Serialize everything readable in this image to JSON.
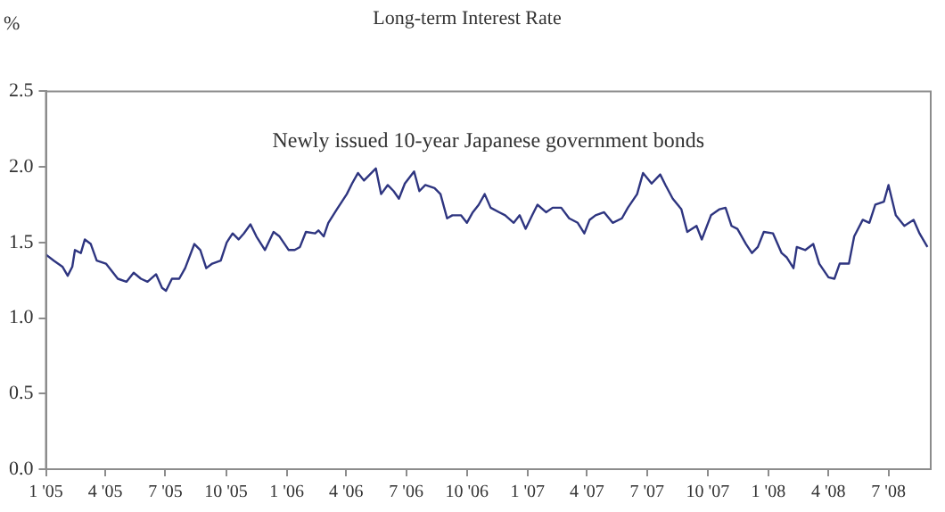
{
  "chart_data": {
    "type": "line",
    "title": "Long-term Interest Rate",
    "ylabel": "%",
    "annotations": [
      "Newly issued 10-year Japanese government bonds"
    ],
    "series": [
      {
        "color": "#2e3580",
        "x": [
          "2005-01-01",
          "2005-01-13",
          "2005-01-26",
          "2005-02-03",
          "2005-02-10",
          "2005-02-14",
          "2005-02-23",
          "2005-03-01",
          "2005-03-10",
          "2005-03-19",
          "2005-04-02",
          "2005-04-11",
          "2005-04-20",
          "2005-05-03",
          "2005-05-14",
          "2005-05-25",
          "2005-06-04",
          "2005-06-17",
          "2005-06-26",
          "2005-07-02",
          "2005-07-11",
          "2005-07-22",
          "2005-07-31",
          "2005-08-14",
          "2005-08-23",
          "2005-09-01",
          "2005-09-10",
          "2005-09-23",
          "2005-10-02",
          "2005-10-11",
          "2005-10-20",
          "2005-10-28",
          "2005-11-07",
          "2005-11-16",
          "2005-11-29",
          "2005-12-12",
          "2005-12-21",
          "2006-01-04",
          "2006-01-13",
          "2006-01-21",
          "2006-01-30",
          "2006-02-13",
          "2006-02-18",
          "2006-02-26",
          "2006-03-05",
          "2006-03-18",
          "2006-04-02",
          "2006-04-10",
          "2006-04-19",
          "2006-04-28",
          "2006-05-07",
          "2006-05-16",
          "2006-05-24",
          "2006-06-03",
          "2006-06-12",
          "2006-06-20",
          "2006-06-29",
          "2006-07-13",
          "2006-07-21",
          "2006-07-30",
          "2006-08-13",
          "2006-08-22",
          "2006-09-01",
          "2006-09-09",
          "2006-09-22",
          "2006-10-01",
          "2006-10-10",
          "2006-10-19",
          "2006-10-28",
          "2006-11-06",
          "2006-11-19",
          "2006-11-28",
          "2006-12-11",
          "2006-12-20",
          "2006-12-29",
          "2007-01-08",
          "2007-01-16",
          "2007-01-29",
          "2007-02-08",
          "2007-02-21",
          "2007-03-05",
          "2007-03-18",
          "2007-03-28",
          "2007-04-05",
          "2007-04-14",
          "2007-04-27",
          "2007-05-10",
          "2007-05-24",
          "2007-06-02",
          "2007-06-16",
          "2007-06-25",
          "2007-07-08",
          "2007-07-21",
          "2007-07-29",
          "2007-08-09",
          "2007-08-22",
          "2007-08-31",
          "2007-09-14",
          "2007-09-22",
          "2007-10-06",
          "2007-10-19",
          "2007-10-28",
          "2007-11-06",
          "2007-11-15",
          "2007-11-28",
          "2007-12-07",
          "2007-12-16",
          "2007-12-25",
          "2008-01-08",
          "2008-01-21",
          "2008-01-29",
          "2008-02-08",
          "2008-02-13",
          "2008-02-26",
          "2008-03-09",
          "2008-03-18",
          "2008-04-01",
          "2008-04-10",
          "2008-04-18",
          "2008-05-02",
          "2008-05-10",
          "2008-05-23",
          "2008-06-02",
          "2008-06-11",
          "2008-06-24",
          "2008-07-01",
          "2008-07-12",
          "2008-07-25",
          "2008-08-08",
          "2008-08-17",
          "2008-08-29"
        ],
        "values": [
          1.42,
          1.38,
          1.34,
          1.28,
          1.34,
          1.45,
          1.43,
          1.52,
          1.49,
          1.38,
          1.36,
          1.31,
          1.26,
          1.24,
          1.3,
          1.26,
          1.24,
          1.29,
          1.2,
          1.18,
          1.26,
          1.26,
          1.33,
          1.49,
          1.45,
          1.33,
          1.36,
          1.38,
          1.5,
          1.56,
          1.52,
          1.56,
          1.62,
          1.54,
          1.45,
          1.57,
          1.54,
          1.45,
          1.45,
          1.47,
          1.57,
          1.56,
          1.58,
          1.54,
          1.63,
          1.72,
          1.82,
          1.89,
          1.96,
          1.91,
          1.95,
          1.99,
          1.82,
          1.88,
          1.84,
          1.79,
          1.89,
          1.97,
          1.84,
          1.88,
          1.86,
          1.82,
          1.66,
          1.68,
          1.68,
          1.63,
          1.7,
          1.75,
          1.82,
          1.73,
          1.7,
          1.68,
          1.63,
          1.68,
          1.59,
          1.68,
          1.75,
          1.7,
          1.73,
          1.73,
          1.66,
          1.63,
          1.56,
          1.65,
          1.68,
          1.7,
          1.63,
          1.66,
          1.73,
          1.82,
          1.96,
          1.89,
          1.95,
          1.88,
          1.79,
          1.72,
          1.57,
          1.61,
          1.52,
          1.68,
          1.72,
          1.73,
          1.61,
          1.59,
          1.49,
          1.43,
          1.47,
          1.57,
          1.56,
          1.43,
          1.4,
          1.33,
          1.47,
          1.45,
          1.49,
          1.36,
          1.27,
          1.26,
          1.36,
          1.36,
          1.54,
          1.65,
          1.63,
          1.75,
          1.77,
          1.88,
          1.68,
          1.61,
          1.65,
          1.56,
          1.47
        ]
      }
    ],
    "xlim": [
      "2005-01-01",
      "2008-09-03"
    ],
    "xticks": [
      {
        "value": "2005-01-01",
        "label": "1 '05"
      },
      {
        "value": "2005-04-01",
        "label": "4 '05"
      },
      {
        "value": "2005-07-01",
        "label": "7 '05"
      },
      {
        "value": "2005-10-01",
        "label": "10 '05"
      },
      {
        "value": "2006-01-01",
        "label": "1 '06"
      },
      {
        "value": "2006-04-01",
        "label": "4 '06"
      },
      {
        "value": "2006-07-01",
        "label": "7 '06"
      },
      {
        "value": "2006-10-01",
        "label": "10 '06"
      },
      {
        "value": "2007-01-01",
        "label": "1 '07"
      },
      {
        "value": "2007-04-01",
        "label": "4 '07"
      },
      {
        "value": "2007-07-01",
        "label": "7 '07"
      },
      {
        "value": "2007-10-01",
        "label": "10 '07"
      },
      {
        "value": "2008-01-01",
        "label": "1 '08"
      },
      {
        "value": "2008-04-01",
        "label": "4 '08"
      },
      {
        "value": "2008-07-01",
        "label": "7 '08"
      }
    ],
    "ylim": [
      0,
      2.5
    ],
    "yticks": [
      {
        "value": 0,
        "label": "0.0"
      },
      {
        "value": 0.5,
        "label": "0.5"
      },
      {
        "value": 1,
        "label": "1.0"
      },
      {
        "value": 1.5,
        "label": "1.5"
      },
      {
        "value": 2,
        "label": "2.0"
      },
      {
        "value": 2.5,
        "label": "2.5"
      }
    ],
    "grid": false,
    "legend": false,
    "marker": "none",
    "line_style": "solid"
  }
}
